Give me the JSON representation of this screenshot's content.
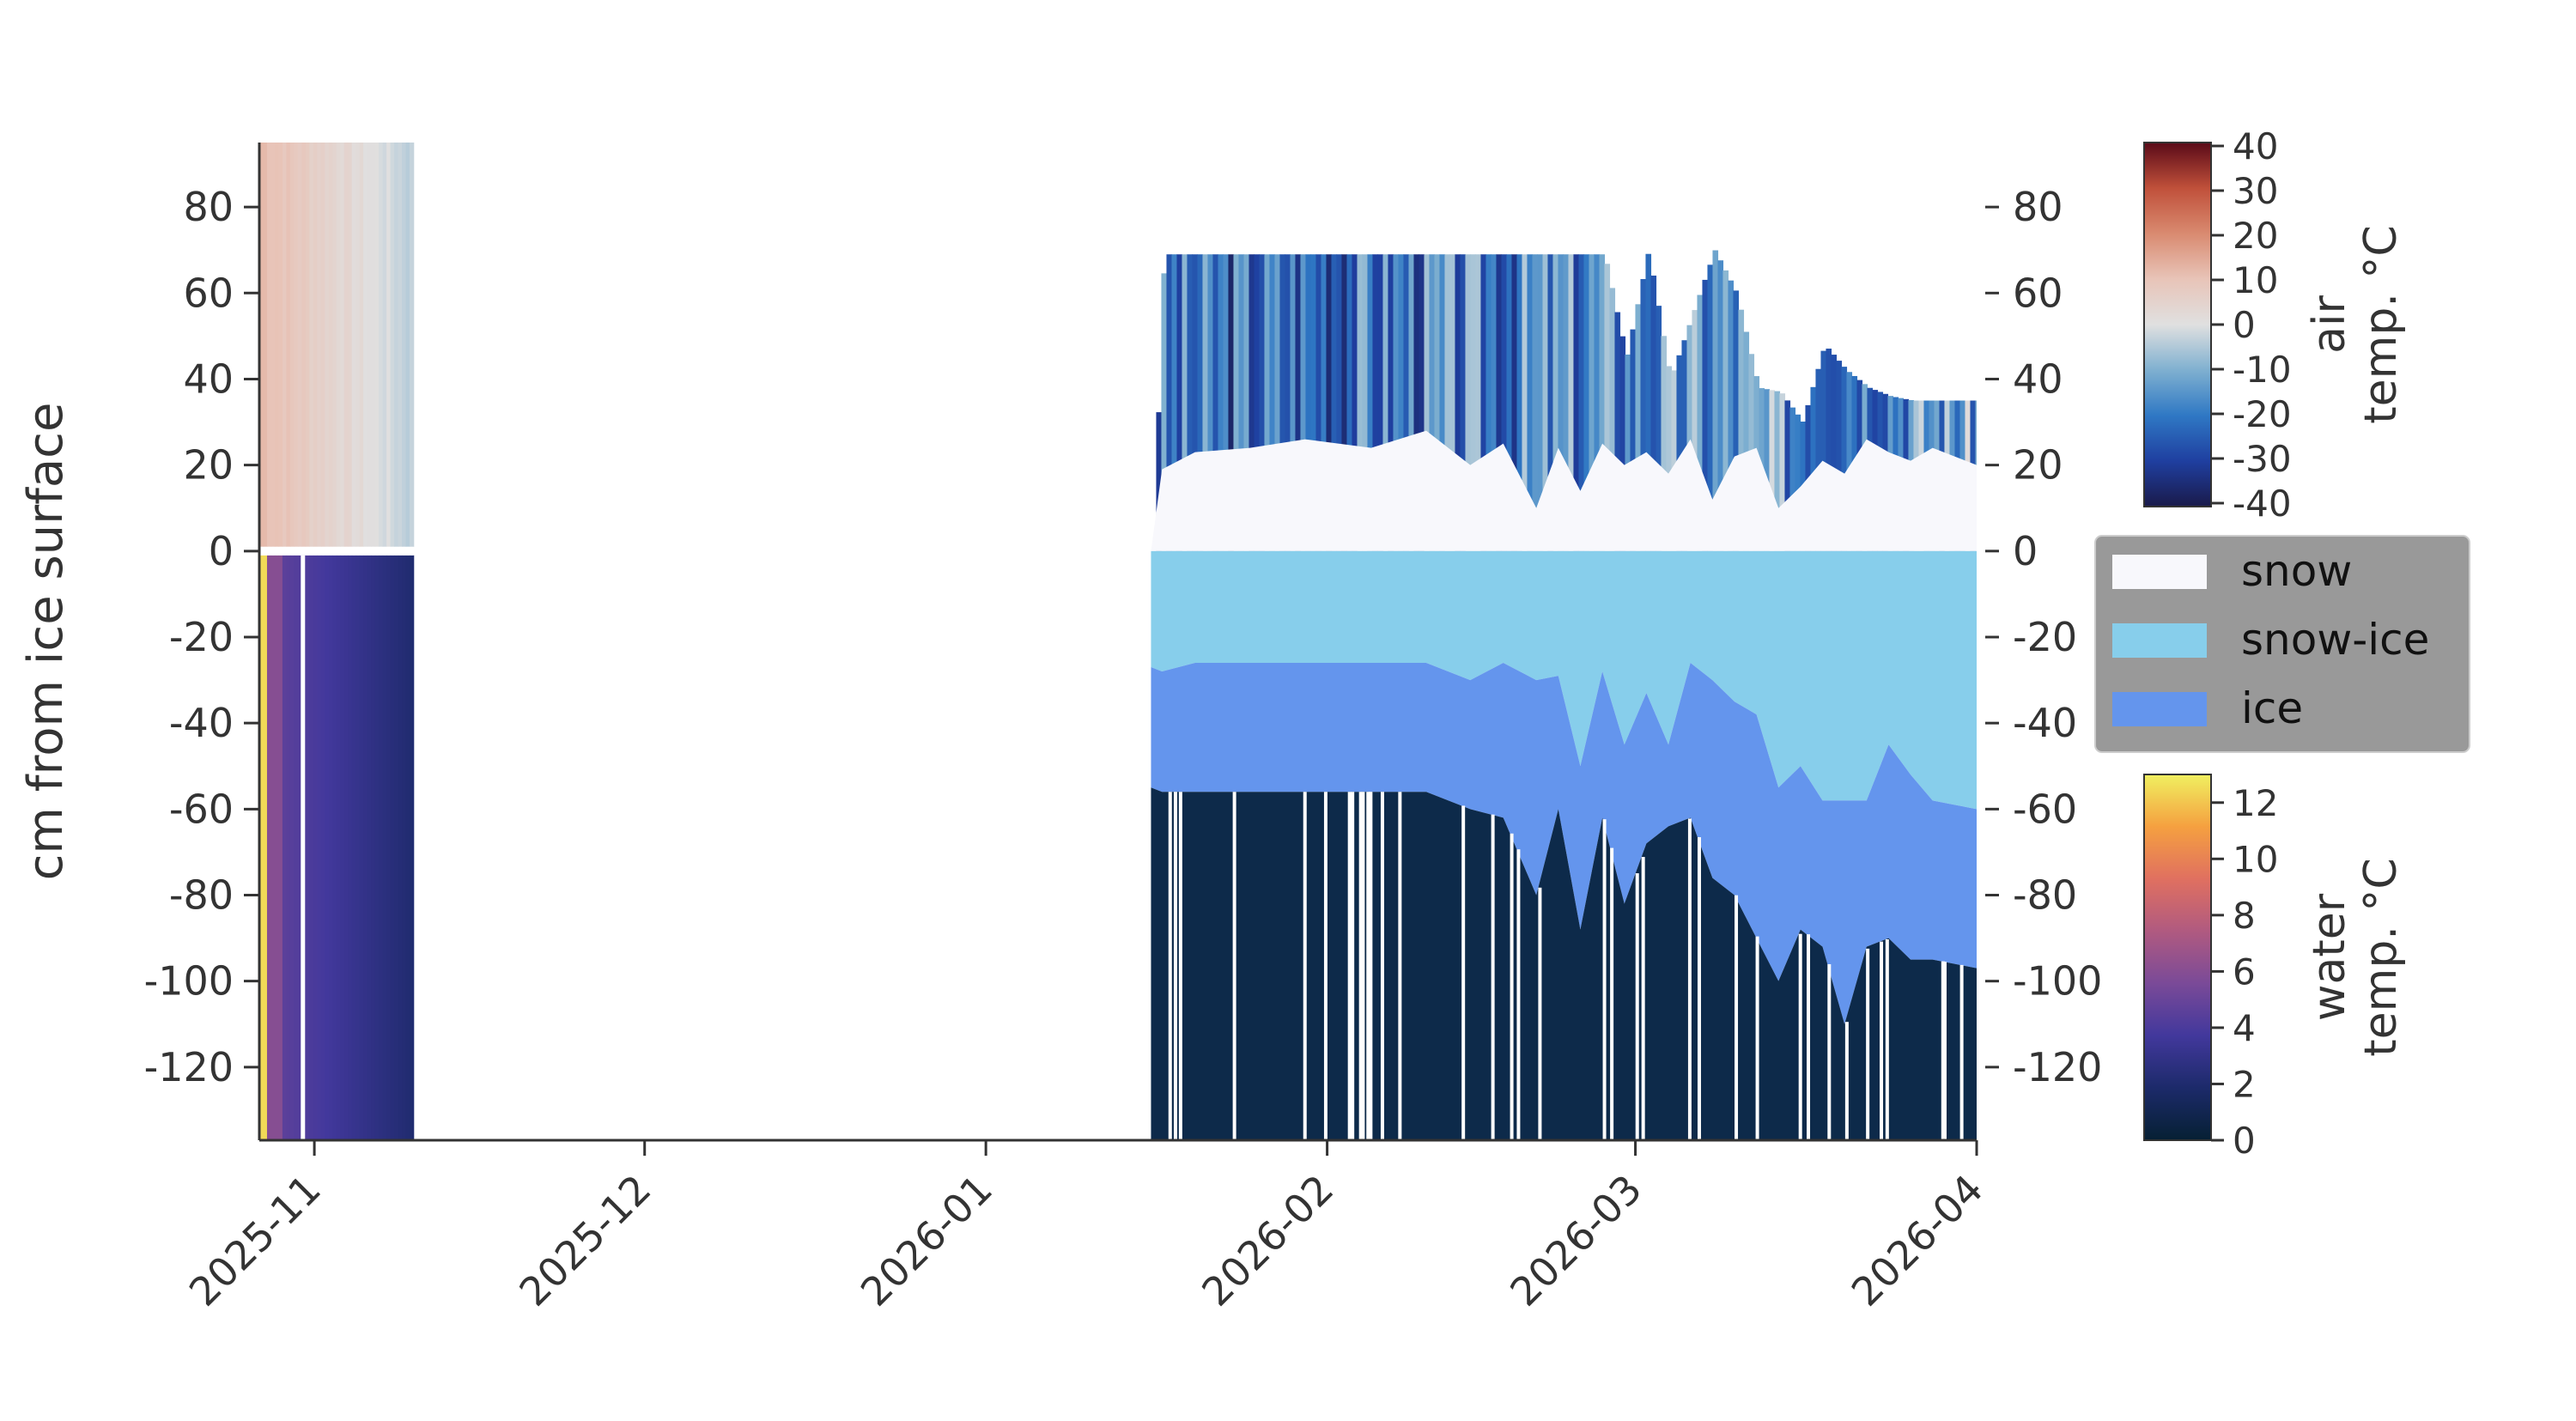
{
  "chart_data": {
    "type": "area",
    "title": "",
    "ylabel": "cm from ice surface",
    "xlim": [
      "2025-10-27",
      "2026-04-01"
    ],
    "ylim": [
      -137,
      95
    ],
    "yticks": [
      80,
      60,
      40,
      20,
      0,
      -20,
      -40,
      -60,
      -80,
      -100,
      -120
    ],
    "xticks": [
      "2025-11",
      "2025-12",
      "2026-01",
      "2026-02",
      "2026-03",
      "2026-04"
    ],
    "grid": false,
    "legend_placement": "right",
    "legend": [
      {
        "label": "snow",
        "color": "#f8f8fc"
      },
      {
        "label": "snow-ice",
        "color": "#87ceeb"
      },
      {
        "label": "ice",
        "color": "#6495ed"
      }
    ],
    "series": [
      {
        "name": "snow",
        "color": "#f8f8fc",
        "x": [
          "2026-01-16",
          "2026-01-17",
          "2026-01-20",
          "2026-01-25",
          "2026-01-30",
          "2026-02-05",
          "2026-02-10",
          "2026-02-14",
          "2026-02-17",
          "2026-02-20",
          "2026-02-22",
          "2026-02-24",
          "2026-02-26",
          "2026-02-28",
          "2026-03-02",
          "2026-03-04",
          "2026-03-06",
          "2026-03-08",
          "2026-03-10",
          "2026-03-12",
          "2026-03-14",
          "2026-03-16",
          "2026-03-18",
          "2026-03-20",
          "2026-03-22",
          "2026-03-24",
          "2026-03-26",
          "2026-03-28",
          "2026-03-30",
          "2026-04-01"
        ],
        "values": [
          0,
          19,
          23,
          24,
          26,
          24,
          28,
          20,
          25,
          10,
          24,
          14,
          25,
          20,
          23,
          18,
          26,
          12,
          22,
          24,
          10,
          15,
          21,
          18,
          26,
          23,
          21,
          24,
          22,
          20
        ]
      },
      {
        "name": "snow-ice",
        "color": "#87ceeb",
        "x": [
          "2026-01-16",
          "2026-01-17",
          "2026-01-20",
          "2026-01-25",
          "2026-01-30",
          "2026-02-05",
          "2026-02-10",
          "2026-02-14",
          "2026-02-17",
          "2026-02-20",
          "2026-02-22",
          "2026-02-24",
          "2026-02-26",
          "2026-02-28",
          "2026-03-02",
          "2026-03-04",
          "2026-03-06",
          "2026-03-08",
          "2026-03-10",
          "2026-03-12",
          "2026-03-14",
          "2026-03-16",
          "2026-03-18",
          "2026-03-20",
          "2026-03-22",
          "2026-03-24",
          "2026-03-26",
          "2026-03-28",
          "2026-03-30",
          "2026-04-01"
        ],
        "values": [
          -27,
          -28,
          -26,
          -26,
          -26,
          -26,
          -26,
          -30,
          -26,
          -30,
          -29,
          -50,
          -28,
          -45,
          -33,
          -45,
          -26,
          -30,
          -35,
          -38,
          -55,
          -50,
          -58,
          -58,
          -58,
          -45,
          -52,
          -58,
          -59,
          -60
        ]
      },
      {
        "name": "ice",
        "color": "#6495ed",
        "x": [
          "2026-01-16",
          "2026-01-17",
          "2026-01-20",
          "2026-01-25",
          "2026-01-30",
          "2026-02-05",
          "2026-02-10",
          "2026-02-14",
          "2026-02-17",
          "2026-02-20",
          "2026-02-22",
          "2026-02-24",
          "2026-02-26",
          "2026-02-28",
          "2026-03-02",
          "2026-03-04",
          "2026-03-06",
          "2026-03-08",
          "2026-03-10",
          "2026-03-12",
          "2026-03-14",
          "2026-03-16",
          "2026-03-18",
          "2026-03-20",
          "2026-03-22",
          "2026-03-24",
          "2026-03-26",
          "2026-03-28",
          "2026-03-30",
          "2026-04-01"
        ],
        "values": [
          -55,
          -56,
          -56,
          -56,
          -56,
          -56,
          -56,
          -60,
          -62,
          -80,
          -60,
          -88,
          -62,
          -82,
          -68,
          -64,
          -62,
          -76,
          -80,
          -90,
          -100,
          -88,
          -92,
          -110,
          -92,
          -90,
          -95,
          -95,
          -96,
          -97
        ]
      }
    ]
  },
  "air_colorbar": {
    "title_line1": "air",
    "title_line2": "temp. °C",
    "ticks": [
      "40",
      "30",
      "20",
      "10",
      "0",
      "-10",
      "-20",
      "-30",
      "-40"
    ],
    "min": -40,
    "max": 40,
    "colors": [
      "#1a1a4a",
      "#1f3fa0",
      "#2f78c4",
      "#7fb0d0",
      "#e0e0e0",
      "#e8c4b8",
      "#d98a70",
      "#c0503a",
      "#5a0a18"
    ]
  },
  "water_colorbar": {
    "title_line1": "water",
    "title_line2": "temp. °C",
    "ticks": [
      "12",
      "10",
      "8",
      "6",
      "4",
      "2",
      "0"
    ],
    "min": 0,
    "max": 13,
    "colors": [
      "#062033",
      "#1c2a6a",
      "#42389c",
      "#7a4a98",
      "#b05a80",
      "#e07060",
      "#f5a040",
      "#f0f060"
    ]
  }
}
